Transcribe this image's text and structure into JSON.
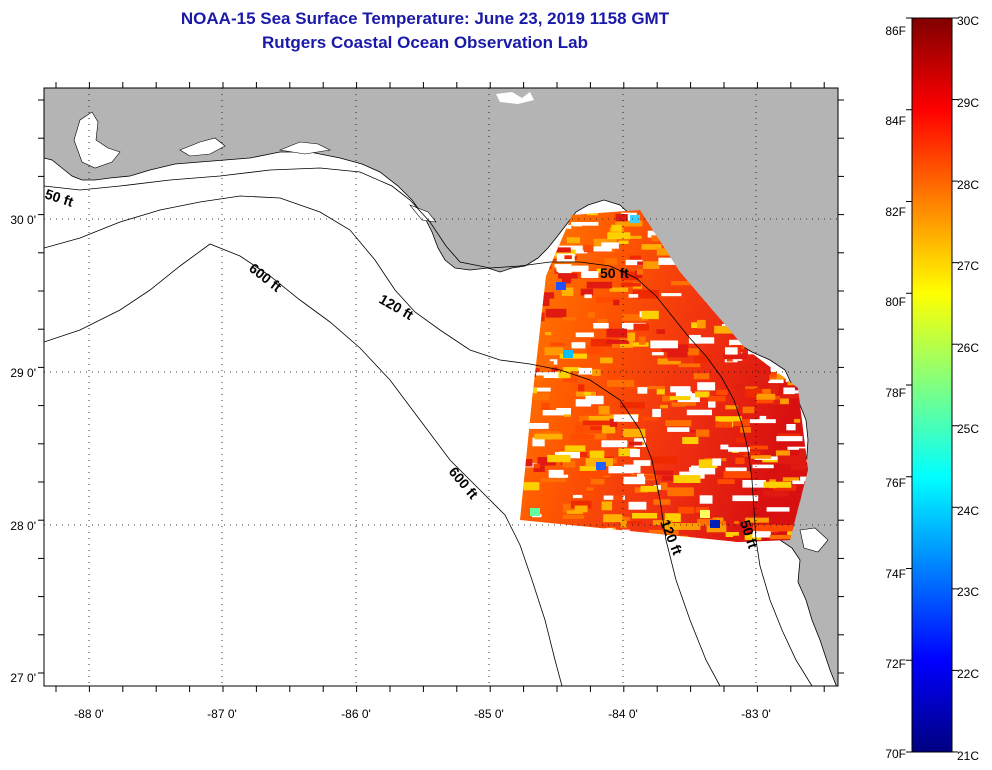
{
  "title": "NOAA-15 Sea Surface Temperature:  June 23, 2019 1158 GMT",
  "subtitle": "Rutgers Coastal Ocean Observation Lab",
  "map": {
    "lat_labels": [
      "30 0'",
      "29 0'",
      "28 0'",
      "27 0'"
    ],
    "lon_labels": [
      "-88 0'",
      "-87 0'",
      "-86 0'",
      "-85 0'",
      "-84 0'",
      "-83 0'"
    ],
    "depth_labels": [
      "50 ft",
      "600 ft",
      "120 ft",
      "50 ft",
      "600 ft",
      "120 ft",
      "50 ft"
    ],
    "land_color": "#b4b4b4",
    "water_color": "#ffffff",
    "cloud_color": "#ffffff"
  },
  "colorbar": {
    "fahrenheit_labels": [
      "86F",
      "84F",
      "82F",
      "80F",
      "78F",
      "76F",
      "74F",
      "72F",
      "70F"
    ],
    "celsius_labels": [
      "30C",
      "29C",
      "28C",
      "27C",
      "26C",
      "25C",
      "24C",
      "23C",
      "22C",
      "21C"
    ],
    "colors_top_to_bottom": [
      "#800000",
      "#ff0000",
      "#ff8000",
      "#ffff00",
      "#80ff80",
      "#00ffff",
      "#0080ff",
      "#0000ff",
      "#000080"
    ]
  }
}
